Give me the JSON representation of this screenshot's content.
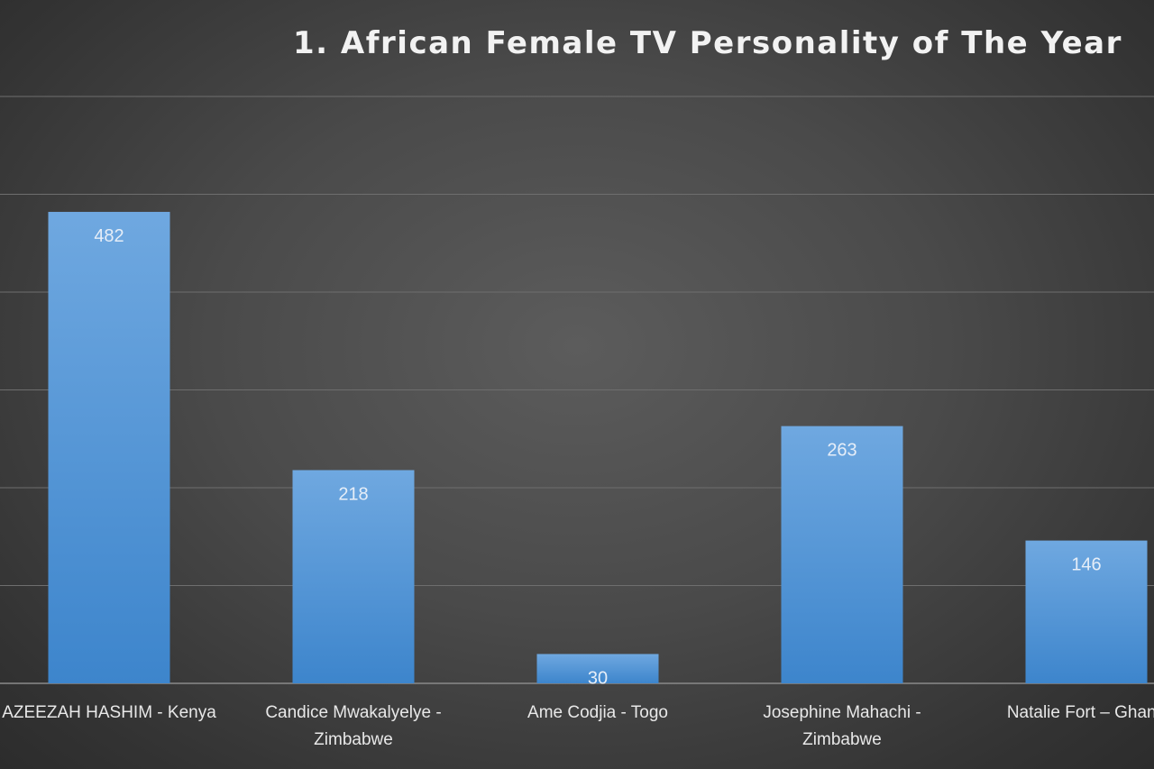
{
  "chart_data": {
    "type": "bar",
    "title": "1. African Female TV Personality of The Year",
    "categories": [
      "AZEEZAH HASHIM - Kenya",
      "Candice Mwakalyelye - Zimbabwe",
      "Ame Codjia - Togo",
      "Josephine Mahachi - Zimbabwe",
      "Natalie Fort – Ghana"
    ],
    "category_lines": [
      [
        "AZEEZAH HASHIM - Kenya"
      ],
      [
        "Candice Mwakalyelye -",
        "Zimbabwe"
      ],
      [
        "Ame Codjia - Togo"
      ],
      [
        "Josephine Mahachi -",
        "Zimbabwe"
      ],
      [
        "Natalie Fort – Ghana"
      ]
    ],
    "values": [
      482,
      218,
      30,
      263,
      146
    ],
    "data_labels": [
      "482",
      "218",
      "30",
      "263",
      "146"
    ],
    "ylim": [
      0,
      600
    ],
    "grid": true,
    "xlabel": "",
    "ylabel": "",
    "colors": {
      "bar_top": "#6fa8e0",
      "bar_bottom": "#3d85cc",
      "background": "#4a4a4a"
    }
  }
}
